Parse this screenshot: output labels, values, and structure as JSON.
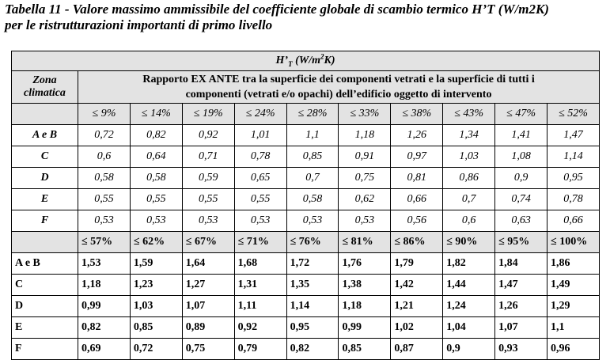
{
  "caption": {
    "line1": "Tabella 11 - Valore massimo ammissibile del coefficiente globale di scambio termico H’T (W/m2K)",
    "line2": "per le ristrutturazioni importanti di primo livello"
  },
  "header": {
    "unit_h": "H’",
    "unit_sub": "T",
    "unit_paren": " (W/m",
    "unit_sup": "2",
    "unit_end": "K)",
    "zone_label_1": "Zona",
    "zone_label_2": "climatica",
    "ratio_label_1": "Rapporto EX ANTE tra la superficie dei componenti vetrati e la superficie di tutti i",
    "ratio_label_2": "componenti (vetrati e/o opachi) dell’edificio oggetto di intervento"
  },
  "upper": {
    "columns": [
      "≤ 9%",
      "≤ 14%",
      "≤ 19%",
      "≤ 24%",
      "≤ 28%",
      "≤ 33%",
      "≤ 38%",
      "≤ 43%",
      "≤ 47%",
      "≤ 52%"
    ],
    "rows": [
      {
        "zone": "A e B",
        "values": [
          "0,72",
          "0,82",
          "0,92",
          "1,01",
          "1,1",
          "1,18",
          "1,26",
          "1,34",
          "1,41",
          "1,47"
        ]
      },
      {
        "zone": "C",
        "values": [
          "0,6",
          "0,64",
          "0,71",
          "0,78",
          "0,85",
          "0,91",
          "0,97",
          "1,03",
          "1,08",
          "1,14"
        ]
      },
      {
        "zone": "D",
        "values": [
          "0,58",
          "0,58",
          "0,59",
          "0,65",
          "0,7",
          "0,75",
          "0,81",
          "0,86",
          "0,9",
          "0,95"
        ]
      },
      {
        "zone": "E",
        "values": [
          "0,55",
          "0,55",
          "0,55",
          "0,55",
          "0,58",
          "0,62",
          "0,66",
          "0,7",
          "0,74",
          "0,78"
        ]
      },
      {
        "zone": "F",
        "values": [
          "0,53",
          "0,53",
          "0,53",
          "0,53",
          "0,53",
          "0,53",
          "0,56",
          "0,6",
          "0,63",
          "0,66"
        ]
      }
    ]
  },
  "lower": {
    "columns": [
      "≤ 57%",
      "≤ 62%",
      "≤ 67%",
      "≤ 71%",
      "≤ 76%",
      "≤ 81%",
      "≤ 86%",
      "≤ 90%",
      "≤ 95%",
      "≤ 100%"
    ],
    "rows": [
      {
        "zone": "A e B",
        "values": [
          "1,53",
          "1,59",
          "1,64",
          "1,68",
          "1,72",
          "1,76",
          "1,79",
          "1,82",
          "1,84",
          "1,86"
        ]
      },
      {
        "zone": "C",
        "values": [
          "1,18",
          "1,23",
          "1,27",
          "1,31",
          "1,35",
          "1,38",
          "1,42",
          "1,44",
          "1,47",
          "1,49"
        ]
      },
      {
        "zone": "D",
        "values": [
          "0,99",
          "1,03",
          "1,07",
          "1,11",
          "1,14",
          "1,18",
          "1,21",
          "1,24",
          "1,26",
          "1,29"
        ]
      },
      {
        "zone": "E",
        "values": [
          "0,82",
          "0,85",
          "0,89",
          "0,92",
          "0,95",
          "0,99",
          "1,02",
          "1,04",
          "1,07",
          "1,1"
        ]
      },
      {
        "zone": "F",
        "values": [
          "0,69",
          "0,72",
          "0,75",
          "0,79",
          "0,82",
          "0,85",
          "0,87",
          "0,9",
          "0,93",
          "0,96"
        ]
      }
    ]
  }
}
